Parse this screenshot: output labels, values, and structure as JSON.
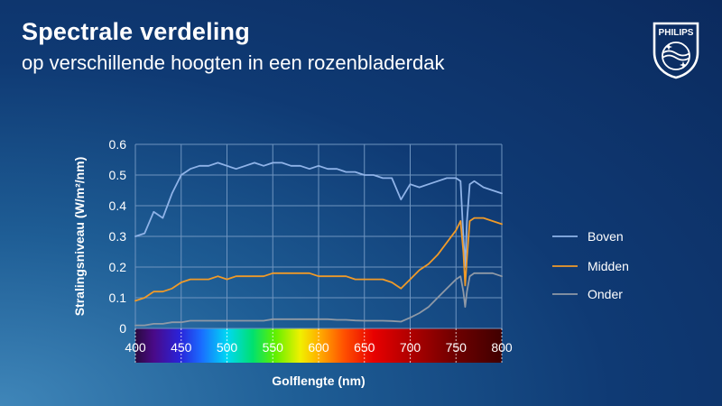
{
  "header": {
    "title": "Spectrale verdeling",
    "subtitle": "op verschillende hoogten in een rozenbladerdak"
  },
  "brand": {
    "name": "PHILIPS",
    "logo_icon": "philips-shield-logo-icon"
  },
  "colors": {
    "grid": "#6e94bf",
    "boven": "#8fb3e8",
    "midden": "#f09a28",
    "onder": "#8f99a6"
  },
  "chart_data": {
    "type": "line",
    "title": "",
    "xlabel": "Golflengte (nm)",
    "ylabel": "Stralingsniveau (W/m²/nm)",
    "xlim": [
      400,
      800
    ],
    "ylim": [
      0,
      0.6
    ],
    "x_ticks": [
      "400",
      "450",
      "500",
      "550",
      "600",
      "650",
      "700",
      "750",
      "800"
    ],
    "y_ticks": [
      "0",
      "0.1",
      "0.2",
      "0.3",
      "0.4",
      "0.5",
      "0.6"
    ],
    "grid": true,
    "legend_position": "right",
    "x_axis_background": "visible-spectrum-color-bar",
    "x": [
      400,
      410,
      420,
      430,
      440,
      450,
      460,
      470,
      480,
      490,
      500,
      510,
      520,
      530,
      540,
      550,
      560,
      570,
      580,
      590,
      600,
      610,
      620,
      630,
      640,
      650,
      660,
      670,
      680,
      690,
      700,
      710,
      720,
      730,
      740,
      750,
      755,
      758,
      760,
      762,
      765,
      770,
      780,
      790,
      800
    ],
    "series": [
      {
        "name": "Boven",
        "color": "#8fb3e8",
        "values": [
          0.3,
          0.31,
          0.38,
          0.36,
          0.44,
          0.5,
          0.52,
          0.53,
          0.53,
          0.54,
          0.53,
          0.52,
          0.53,
          0.54,
          0.53,
          0.54,
          0.54,
          0.53,
          0.53,
          0.52,
          0.53,
          0.52,
          0.52,
          0.51,
          0.51,
          0.5,
          0.5,
          0.49,
          0.49,
          0.42,
          0.47,
          0.46,
          0.47,
          0.48,
          0.49,
          0.49,
          0.48,
          0.3,
          0.2,
          0.35,
          0.47,
          0.48,
          0.46,
          0.45,
          0.44
        ]
      },
      {
        "name": "Midden",
        "color": "#f09a28",
        "values": [
          0.09,
          0.1,
          0.12,
          0.12,
          0.13,
          0.15,
          0.16,
          0.16,
          0.16,
          0.17,
          0.16,
          0.17,
          0.17,
          0.17,
          0.17,
          0.18,
          0.18,
          0.18,
          0.18,
          0.18,
          0.17,
          0.17,
          0.17,
          0.17,
          0.16,
          0.16,
          0.16,
          0.16,
          0.15,
          0.13,
          0.16,
          0.19,
          0.21,
          0.24,
          0.28,
          0.32,
          0.35,
          0.25,
          0.14,
          0.23,
          0.35,
          0.36,
          0.36,
          0.35,
          0.34
        ]
      },
      {
        "name": "Onder",
        "color": "#8f99a6",
        "values": [
          0.01,
          0.01,
          0.015,
          0.015,
          0.02,
          0.02,
          0.025,
          0.025,
          0.025,
          0.025,
          0.025,
          0.025,
          0.025,
          0.025,
          0.025,
          0.03,
          0.03,
          0.03,
          0.03,
          0.03,
          0.03,
          0.03,
          0.028,
          0.028,
          0.026,
          0.025,
          0.025,
          0.025,
          0.024,
          0.022,
          0.035,
          0.05,
          0.07,
          0.1,
          0.13,
          0.16,
          0.17,
          0.12,
          0.07,
          0.12,
          0.17,
          0.18,
          0.18,
          0.18,
          0.17
        ]
      }
    ]
  }
}
